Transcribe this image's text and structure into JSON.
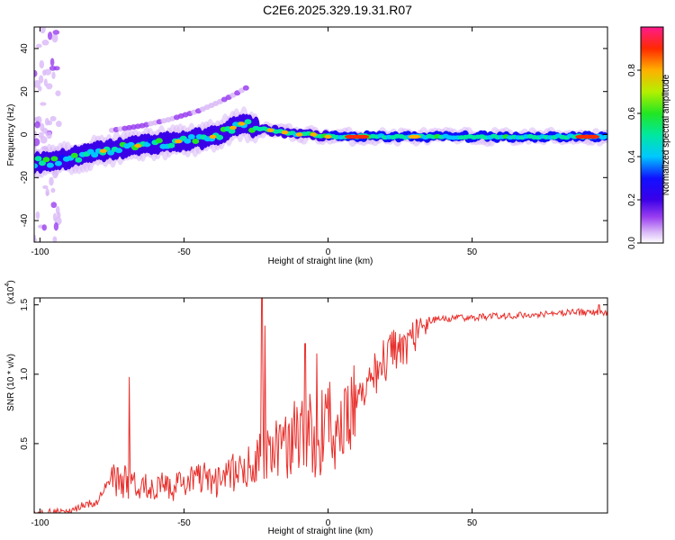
{
  "title": "C2E6.2025.329.19.31.R07",
  "colors": {
    "snr_line": "#e8302c",
    "background": "#ffffff",
    "colormap": [
      "#ffffff",
      "#d9b8f7",
      "#9a3ff0",
      "#4b00e0",
      "#1010ff",
      "#00c8ff",
      "#00e8a0",
      "#22e622",
      "#e6f000",
      "#ff9a00",
      "#ff2a00",
      "#ff1a8c"
    ]
  },
  "chart_data": [
    {
      "type": "heatmap",
      "xlabel": "Height of straight line (km)",
      "ylabel": "Frequency (Hz)",
      "xlim": [
        -102,
        97
      ],
      "ylim": [
        -50,
        50
      ],
      "x_ticks": [
        -100,
        -50,
        0,
        50
      ],
      "x_tick_labels": [
        "-100",
        "-50",
        "0",
        "50"
      ],
      "y_ticks": [
        -40,
        -20,
        0,
        20,
        40
      ],
      "y_tick_labels": [
        "-40",
        "-20",
        "0",
        "20",
        "40"
      ],
      "ridge": {
        "x": [
          -100,
          -90,
          -80,
          -70,
          -60,
          -50,
          -40,
          -35,
          -30,
          -25,
          -20,
          -15,
          -10,
          -5,
          0,
          10,
          20,
          30,
          40,
          50,
          60,
          70,
          80,
          90,
          97
        ],
        "y": [
          -13,
          -11,
          -8,
          -6,
          -4,
          -3,
          -1,
          2,
          5,
          3,
          2,
          1,
          0,
          0,
          -1,
          -1,
          -1,
          -1,
          -1,
          -1,
          -1,
          -1,
          -1,
          -1,
          -1
        ]
      },
      "branch": {
        "x": [
          -75,
          -65,
          -55,
          -45,
          -38,
          -32,
          -28
        ],
        "y": [
          2,
          4,
          7,
          11,
          15,
          19,
          22
        ]
      },
      "colorbar": {
        "label": "Normalized spectral amplitude",
        "range": [
          0,
          1
        ],
        "ticks": [
          0.0,
          0.2,
          0.4,
          0.6,
          0.8
        ],
        "tick_labels": [
          "0.0",
          "0.2",
          "0.4",
          "0.6",
          "0.8"
        ]
      }
    },
    {
      "type": "line",
      "xlabel": "Height of straight line (km)",
      "ylabel": "SNR (10 * v/v)",
      "scale_label": "(x10",
      "scale_exponent": "4",
      "scale_suffix": ")",
      "xlim": [
        -102,
        97
      ],
      "ylim": [
        0,
        1.55
      ],
      "x_ticks": [
        -100,
        -50,
        0,
        50
      ],
      "x_tick_labels": [
        "-100",
        "-50",
        "0",
        "50"
      ],
      "y_ticks": [
        0.5,
        1.0,
        1.5
      ],
      "y_tick_labels": [
        "0.5",
        "1.0",
        "1.5"
      ],
      "envelope": {
        "x": [
          -102,
          -90,
          -80,
          -76,
          -72,
          -68,
          -60,
          -50,
          -40,
          -30,
          -25,
          -20,
          -15,
          -10,
          -5,
          0,
          5,
          10,
          15,
          20,
          25,
          30,
          35,
          40,
          50,
          60,
          70,
          80,
          90,
          97
        ],
        "y": [
          0.01,
          0.04,
          0.1,
          0.28,
          0.38,
          0.3,
          0.25,
          0.3,
          0.33,
          0.42,
          0.5,
          0.58,
          0.65,
          0.72,
          0.78,
          0.82,
          0.9,
          1.0,
          1.1,
          1.2,
          1.3,
          1.36,
          1.39,
          1.4,
          1.41,
          1.42,
          1.43,
          1.44,
          1.45,
          1.44
        ]
      },
      "peaks": [
        {
          "x": -69,
          "y": 0.98
        },
        {
          "x": -23,
          "y": 1.55
        },
        {
          "x": -22,
          "y": 1.35
        },
        {
          "x": -8,
          "y": 1.22
        },
        {
          "x": -4,
          "y": 1.15
        },
        {
          "x": 94,
          "y": 1.5
        }
      ]
    }
  ]
}
